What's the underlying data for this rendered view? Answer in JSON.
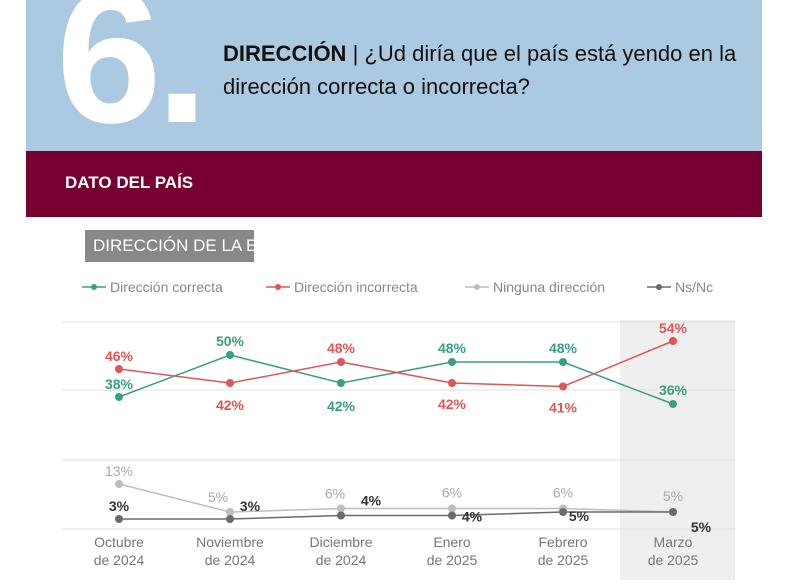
{
  "header": {
    "number": "6.",
    "title_bold": "DIRECCIÓN",
    "separator": " | ",
    "question": "¿Ud diría que el país está yendo en la dirección correcta o incorrecta?"
  },
  "band": {
    "label": "DATO DEL PAÍS"
  },
  "chart_data": {
    "type": "line",
    "title": "DIRECCIÓN DE LA ECONOMÍA",
    "categories": [
      [
        "Octubre",
        "de 2024"
      ],
      [
        "Noviembre",
        "de 2024"
      ],
      [
        "Diciembre",
        "de 2024"
      ],
      [
        "Enero",
        "de 2025"
      ],
      [
        "Febrero",
        "de 2025"
      ],
      [
        "Marzo",
        "de 2025"
      ]
    ],
    "legend_position": "top",
    "highlight_category": "Marzo de 2025",
    "series": [
      {
        "name": "Dirección correcta",
        "color": "#3a9e83",
        "values": [
          38,
          50,
          42,
          48,
          48,
          36
        ]
      },
      {
        "name": "Dirección incorrecta",
        "color": "#e05555",
        "values": [
          46,
          42,
          48,
          42,
          41,
          54
        ]
      },
      {
        "name": "Ninguna dirección",
        "color": "#bdbdbd",
        "values": [
          13,
          5,
          6,
          6,
          6,
          5
        ]
      },
      {
        "name": "Ns/Nc",
        "color": "#6b6b6b",
        "values": [
          3,
          3,
          4,
          4,
          5,
          5
        ]
      }
    ],
    "value_suffix": "%"
  }
}
